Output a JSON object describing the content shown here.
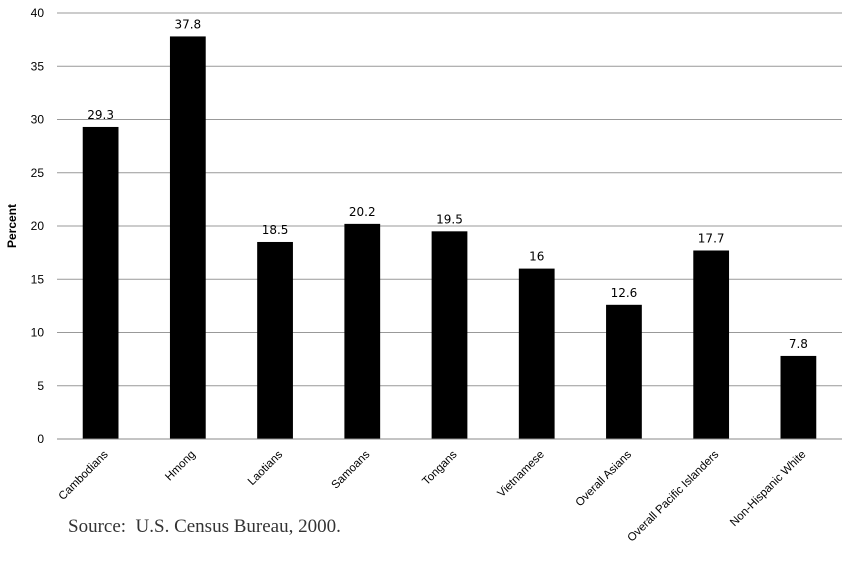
{
  "chart_data": {
    "type": "bar",
    "categories": [
      "Cambodians",
      "Hmong",
      "Laotians",
      "Samoans",
      "Tongans",
      "Vietnamese",
      "Overall Asians",
      "Overall Pacific Islanders",
      "Non-Hispanic White"
    ],
    "values": [
      29.3,
      37.8,
      18.5,
      20.2,
      19.5,
      16,
      12.6,
      17.7,
      7.8
    ],
    "ylabel": "Percent",
    "xlabel": "",
    "ylim": [
      0,
      40
    ],
    "yticks": [
      0,
      5,
      10,
      15,
      20,
      25,
      30,
      35,
      40
    ],
    "grid": true,
    "bar_color": "#000000",
    "grid_color": "#999999"
  },
  "source": "Source:  U.S. Census Bureau, 2000."
}
